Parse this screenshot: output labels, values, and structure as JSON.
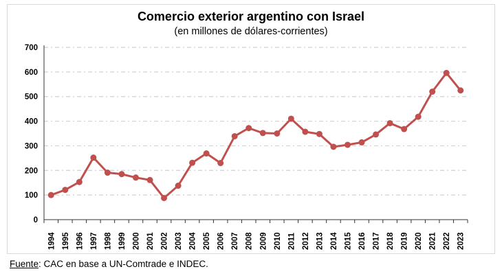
{
  "chart_data": {
    "type": "line",
    "title": "Comercio exterior argentino con Israel",
    "subtitle": "(en millones de dólares-corrientes)",
    "xlabel": "",
    "ylabel": "",
    "ylim": [
      0,
      700
    ],
    "yticks": [
      0,
      100,
      200,
      300,
      400,
      500,
      600,
      700
    ],
    "grid": true,
    "categories": [
      "1994",
      "1995",
      "1996",
      "1997",
      "1998",
      "1999",
      "2000",
      "2001",
      "2002",
      "2003",
      "2004",
      "2005",
      "2006",
      "2007",
      "2008",
      "2009",
      "2010",
      "2011",
      "2012",
      "2013",
      "2014",
      "2015",
      "2016",
      "2017",
      "2018",
      "2019",
      "2020",
      "2021",
      "2022",
      "2023"
    ],
    "series": [
      {
        "name": "Comercio exterior",
        "color": "#c0504d",
        "values": [
          100,
          121,
          153,
          252,
          191,
          185,
          171,
          161,
          88,
          138,
          231,
          269,
          230,
          339,
          372,
          352,
          350,
          410,
          357,
          348,
          296,
          304,
          314,
          346,
          392,
          368,
          418,
          520,
          596,
          525
        ]
      }
    ]
  },
  "source": {
    "label": "Fuente",
    "text": ": CAC en base a UN-Comtrade e INDEC."
  }
}
